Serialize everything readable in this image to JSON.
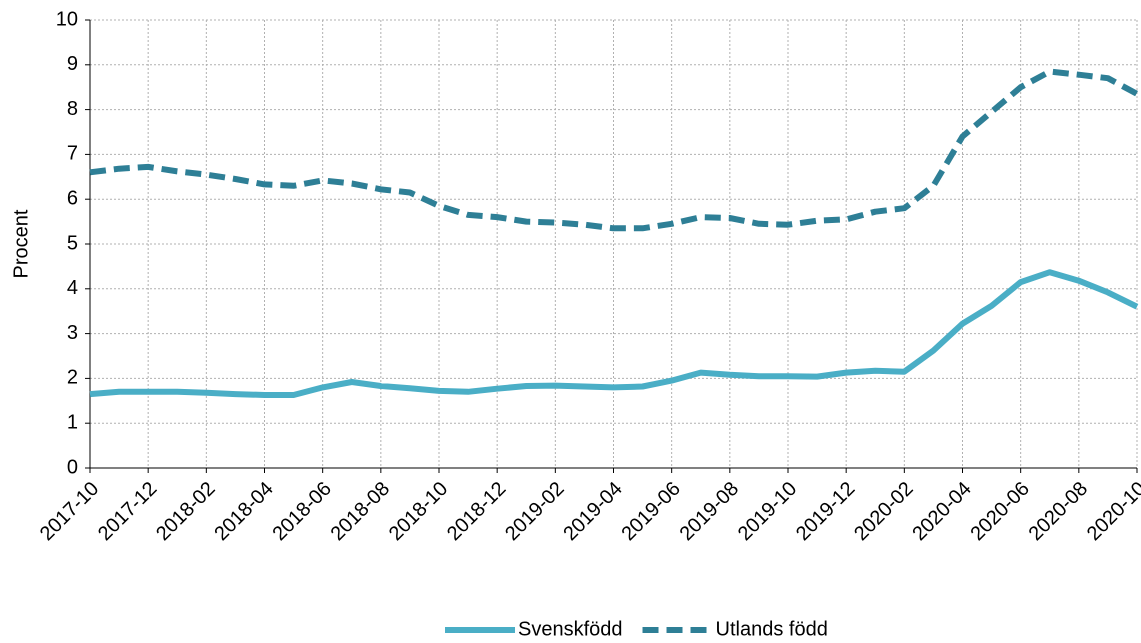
{
  "chart_data": {
    "type": "line",
    "y_label": "Procent",
    "categories": [
      "2017-10",
      null,
      "2017-12",
      null,
      "2018-02",
      null,
      "2018-04",
      null,
      "2018-06",
      null,
      "2018-08",
      null,
      "2018-10",
      null,
      "2018-12",
      null,
      "2019-02",
      null,
      "2019-04",
      null,
      "2019-06",
      null,
      "2019-08",
      null,
      "2019-10",
      null,
      "2019-12",
      null,
      "2020-02",
      null,
      "2020-04",
      null,
      "2020-06",
      null,
      "2020-08",
      null,
      "2020-10"
    ],
    "series": [
      {
        "name": "Svenskfödd",
        "color": "#4aaec6",
        "dash": false,
        "values": [
          1.65,
          1.7,
          1.7,
          1.7,
          1.68,
          1.65,
          1.63,
          1.63,
          1.8,
          1.92,
          1.83,
          1.78,
          1.72,
          1.7,
          1.77,
          1.83,
          1.84,
          1.82,
          1.8,
          1.82,
          1.95,
          2.13,
          2.08,
          2.05,
          2.05,
          2.04,
          2.13,
          2.17,
          2.15,
          2.62,
          3.22,
          3.62,
          4.15,
          4.37,
          4.18,
          3.92,
          3.6
        ]
      },
      {
        "name": "Utlands född",
        "color": "#2e7f96",
        "dash": true,
        "values": [
          6.6,
          6.68,
          6.72,
          6.62,
          6.55,
          6.45,
          6.33,
          6.3,
          6.42,
          6.35,
          6.22,
          6.15,
          5.85,
          5.65,
          5.6,
          5.5,
          5.48,
          5.43,
          5.35,
          5.35,
          5.45,
          5.6,
          5.58,
          5.45,
          5.43,
          5.52,
          5.55,
          5.72,
          5.8,
          6.3,
          7.4,
          7.95,
          8.5,
          8.85,
          8.78,
          8.7,
          8.35
        ]
      }
    ],
    "ylim": [
      0,
      10
    ],
    "yticks": [
      0,
      1,
      2,
      3,
      4,
      5,
      6,
      7,
      8,
      9,
      10
    ],
    "grid": true,
    "legend": "bottom"
  }
}
